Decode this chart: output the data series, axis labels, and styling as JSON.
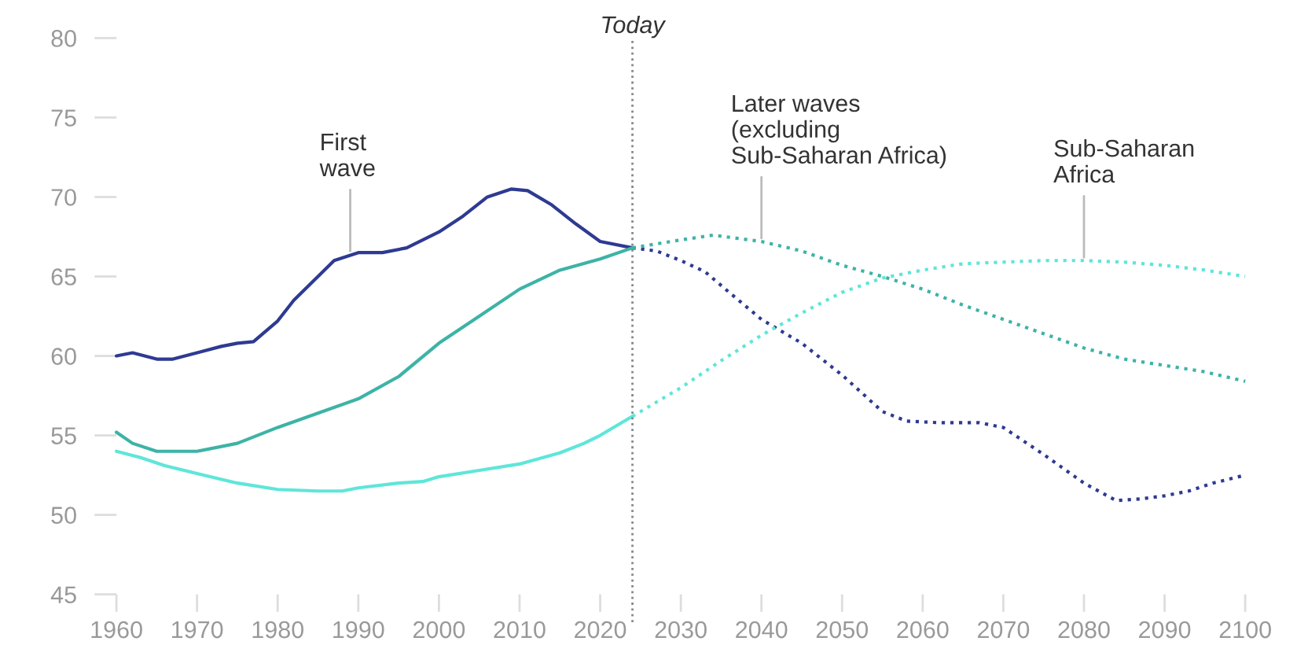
{
  "chart_data": {
    "type": "line",
    "xlim": [
      1960,
      2100
    ],
    "xticks": [
      1960,
      1970,
      1980,
      1990,
      2000,
      2010,
      2020,
      2030,
      2040,
      2050,
      2060,
      2070,
      2080,
      2090,
      2100
    ],
    "ylim": [
      45,
      80
    ],
    "yticks": [
      45,
      50,
      55,
      60,
      65,
      70,
      75,
      80
    ],
    "grid": false,
    "marker": "none",
    "series": [
      {
        "color": "#2e3a92",
        "line_style": "solid",
        "x": [
          1960,
          1962,
          1965,
          1967,
          1970,
          1973,
          1975,
          1977,
          1980,
          1982,
          1985,
          1987,
          1990,
          1993,
          1996,
          2000,
          2003,
          2006,
          2009,
          2011,
          2014,
          2017,
          2020,
          2024
        ],
        "values": [
          60.0,
          60.2,
          59.8,
          59.8,
          60.2,
          60.6,
          60.8,
          60.9,
          62.2,
          63.5,
          65.0,
          66.0,
          66.5,
          66.5,
          66.8,
          67.8,
          68.8,
          70.0,
          70.5,
          70.4,
          69.5,
          68.3,
          67.2,
          66.8
        ]
      },
      {
        "color": "#2e3a92",
        "line_style": "dotted",
        "x": [
          2024,
          2027,
          2030,
          2033,
          2036,
          2040,
          2045,
          2050,
          2055,
          2058,
          2062,
          2067,
          2070,
          2075,
          2080,
          2084,
          2087,
          2090,
          2093,
          2096,
          2100
        ],
        "values": [
          66.8,
          66.6,
          66.0,
          65.3,
          64.0,
          62.3,
          60.8,
          58.8,
          56.5,
          55.9,
          55.8,
          55.8,
          55.5,
          53.8,
          52.0,
          50.9,
          51.0,
          51.2,
          51.5,
          52.0,
          52.5
        ]
      },
      {
        "color": "#3db3a6",
        "line_style": "solid",
        "x": [
          1960,
          1962,
          1965,
          1970,
          1975,
          1980,
          1985,
          1990,
          1995,
          2000,
          2005,
          2010,
          2015,
          2020,
          2024
        ],
        "values": [
          55.2,
          54.5,
          54.0,
          54.0,
          54.5,
          55.5,
          56.4,
          57.3,
          58.7,
          60.8,
          62.5,
          64.2,
          65.4,
          66.1,
          66.8
        ]
      },
      {
        "color": "#3db3a6",
        "line_style": "dotted",
        "x": [
          2024,
          2030,
          2034,
          2040,
          2045,
          2050,
          2055,
          2060,
          2065,
          2070,
          2075,
          2080,
          2085,
          2090,
          2095,
          2100
        ],
        "values": [
          66.8,
          67.3,
          67.6,
          67.2,
          66.6,
          65.7,
          65.0,
          64.2,
          63.2,
          62.3,
          61.4,
          60.5,
          59.8,
          59.4,
          59.0,
          58.4
        ]
      },
      {
        "color": "#5ee6d9",
        "line_style": "solid",
        "x": [
          1960,
          1963,
          1966,
          1970,
          1975,
          1980,
          1985,
          1988,
          1990,
          1995,
          1998,
          2000,
          2005,
          2010,
          2015,
          2018,
          2020,
          2024
        ],
        "values": [
          54.0,
          53.6,
          53.1,
          52.6,
          52.0,
          51.6,
          51.5,
          51.5,
          51.7,
          52.0,
          52.1,
          52.4,
          52.8,
          53.2,
          53.9,
          54.5,
          55.0,
          56.2
        ]
      },
      {
        "color": "#5ee6d9",
        "line_style": "dotted",
        "x": [
          2024,
          2030,
          2035,
          2040,
          2045,
          2050,
          2055,
          2060,
          2065,
          2070,
          2075,
          2080,
          2085,
          2090,
          2095,
          2100
        ],
        "values": [
          56.2,
          58.0,
          59.7,
          61.3,
          62.7,
          64.0,
          64.9,
          65.4,
          65.8,
          65.9,
          66.0,
          66.0,
          65.9,
          65.7,
          65.4,
          65.0
        ]
      }
    ],
    "ref_lines": [
      {
        "axis": "x",
        "value": 2024,
        "label": "Today",
        "color": "#888888",
        "line_style": "dotted"
      }
    ],
    "annotations": [
      {
        "text": "First\nwave",
        "x": 1989,
        "y": 66.6
      },
      {
        "text": "Later waves\n(excluding\nSub-Saharan Africa)",
        "x": 2040,
        "y": 67.4
      },
      {
        "text": "Sub-Saharan\nAfrica",
        "x": 2080,
        "y": 66.2
      }
    ]
  }
}
